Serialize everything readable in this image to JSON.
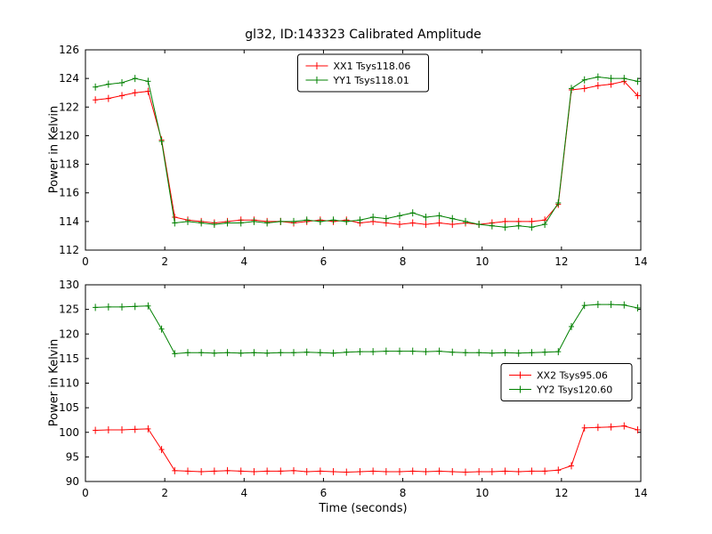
{
  "figure": {
    "background": "#ffffff"
  },
  "chart_data": [
    {
      "type": "line",
      "title": "gl32, ID:143323 Calibrated Amplitude",
      "xlabel": "",
      "ylabel": "Power in Kelvin",
      "xlim": [
        0,
        14
      ],
      "ylim": [
        112,
        126
      ],
      "xticks": [
        0,
        2,
        4,
        6,
        8,
        10,
        12,
        14
      ],
      "yticks": [
        112,
        114,
        116,
        118,
        120,
        122,
        124,
        126
      ],
      "grid": false,
      "marker": "plus-errorbar",
      "legend_position": "upper center",
      "x": [
        0.25,
        0.58,
        0.92,
        1.25,
        1.58,
        1.92,
        2.25,
        2.58,
        2.92,
        3.25,
        3.58,
        3.92,
        4.25,
        4.58,
        4.92,
        5.25,
        5.58,
        5.92,
        6.25,
        6.58,
        6.92,
        7.25,
        7.58,
        7.92,
        8.25,
        8.58,
        8.92,
        9.25,
        9.58,
        9.92,
        10.25,
        10.58,
        10.92,
        11.25,
        11.58,
        11.92,
        12.25,
        12.58,
        12.92,
        13.25,
        13.58,
        13.92
      ],
      "series": [
        {
          "name": "XX1 Tsys118.06",
          "color": "#ff0000",
          "values": [
            122.5,
            122.6,
            122.8,
            123.0,
            123.1,
            119.7,
            114.3,
            114.1,
            114.0,
            113.9,
            114.0,
            114.1,
            114.1,
            114.0,
            114.0,
            113.9,
            114.0,
            114.1,
            114.0,
            114.1,
            113.9,
            114.0,
            113.9,
            113.8,
            113.9,
            113.8,
            113.9,
            113.8,
            113.9,
            113.8,
            113.9,
            114.0,
            114.0,
            114.0,
            114.1,
            115.2,
            123.2,
            123.3,
            123.5,
            123.6,
            123.8,
            122.8
          ]
        },
        {
          "name": "YY1 Tsys118.01",
          "color": "#008000",
          "values": [
            123.4,
            123.6,
            123.7,
            124.0,
            123.8,
            119.6,
            113.9,
            114.0,
            113.9,
            113.8,
            113.9,
            113.9,
            114.0,
            113.9,
            114.0,
            114.0,
            114.1,
            114.0,
            114.1,
            114.0,
            114.1,
            114.3,
            114.2,
            114.4,
            114.6,
            114.3,
            114.4,
            114.2,
            114.0,
            113.8,
            113.7,
            113.6,
            113.7,
            113.6,
            113.8,
            115.3,
            123.3,
            123.9,
            124.1,
            124.0,
            124.0,
            123.8
          ]
        }
      ]
    },
    {
      "type": "line",
      "title": "",
      "xlabel": "Time (seconds)",
      "ylabel": "Power in Kelvin",
      "xlim": [
        0,
        14
      ],
      "ylim": [
        90,
        130
      ],
      "xticks": [
        0,
        2,
        4,
        6,
        8,
        10,
        12,
        14
      ],
      "yticks": [
        90,
        95,
        100,
        105,
        110,
        115,
        120,
        125,
        130
      ],
      "grid": false,
      "marker": "plus-errorbar",
      "legend_position": "center right",
      "x": [
        0.25,
        0.58,
        0.92,
        1.25,
        1.58,
        1.92,
        2.25,
        2.58,
        2.92,
        3.25,
        3.58,
        3.92,
        4.25,
        4.58,
        4.92,
        5.25,
        5.58,
        5.92,
        6.25,
        6.58,
        6.92,
        7.25,
        7.58,
        7.92,
        8.25,
        8.58,
        8.92,
        9.25,
        9.58,
        9.92,
        10.25,
        10.58,
        10.92,
        11.25,
        11.58,
        11.92,
        12.25,
        12.58,
        12.92,
        13.25,
        13.58,
        13.92
      ],
      "series": [
        {
          "name": "XX2 Tsys95.06",
          "color": "#ff0000",
          "values": [
            100.4,
            100.5,
            100.5,
            100.6,
            100.7,
            96.5,
            92.2,
            92.1,
            92.0,
            92.1,
            92.2,
            92.1,
            92.0,
            92.1,
            92.1,
            92.2,
            92.0,
            92.1,
            92.0,
            91.9,
            92.0,
            92.1,
            92.0,
            92.0,
            92.1,
            92.0,
            92.1,
            92.0,
            91.9,
            92.0,
            92.0,
            92.1,
            92.0,
            92.1,
            92.1,
            92.3,
            93.2,
            100.9,
            101.0,
            101.1,
            101.3,
            100.5
          ]
        },
        {
          "name": "YY2 Tsys120.60",
          "color": "#008000",
          "values": [
            125.4,
            125.5,
            125.5,
            125.6,
            125.7,
            121.0,
            116.0,
            116.2,
            116.2,
            116.1,
            116.2,
            116.1,
            116.2,
            116.1,
            116.2,
            116.2,
            116.3,
            116.2,
            116.1,
            116.3,
            116.4,
            116.4,
            116.5,
            116.5,
            116.5,
            116.4,
            116.5,
            116.3,
            116.2,
            116.2,
            116.1,
            116.2,
            116.1,
            116.2,
            116.3,
            116.4,
            121.5,
            125.8,
            126.0,
            126.0,
            125.9,
            125.3
          ]
        }
      ]
    }
  ]
}
